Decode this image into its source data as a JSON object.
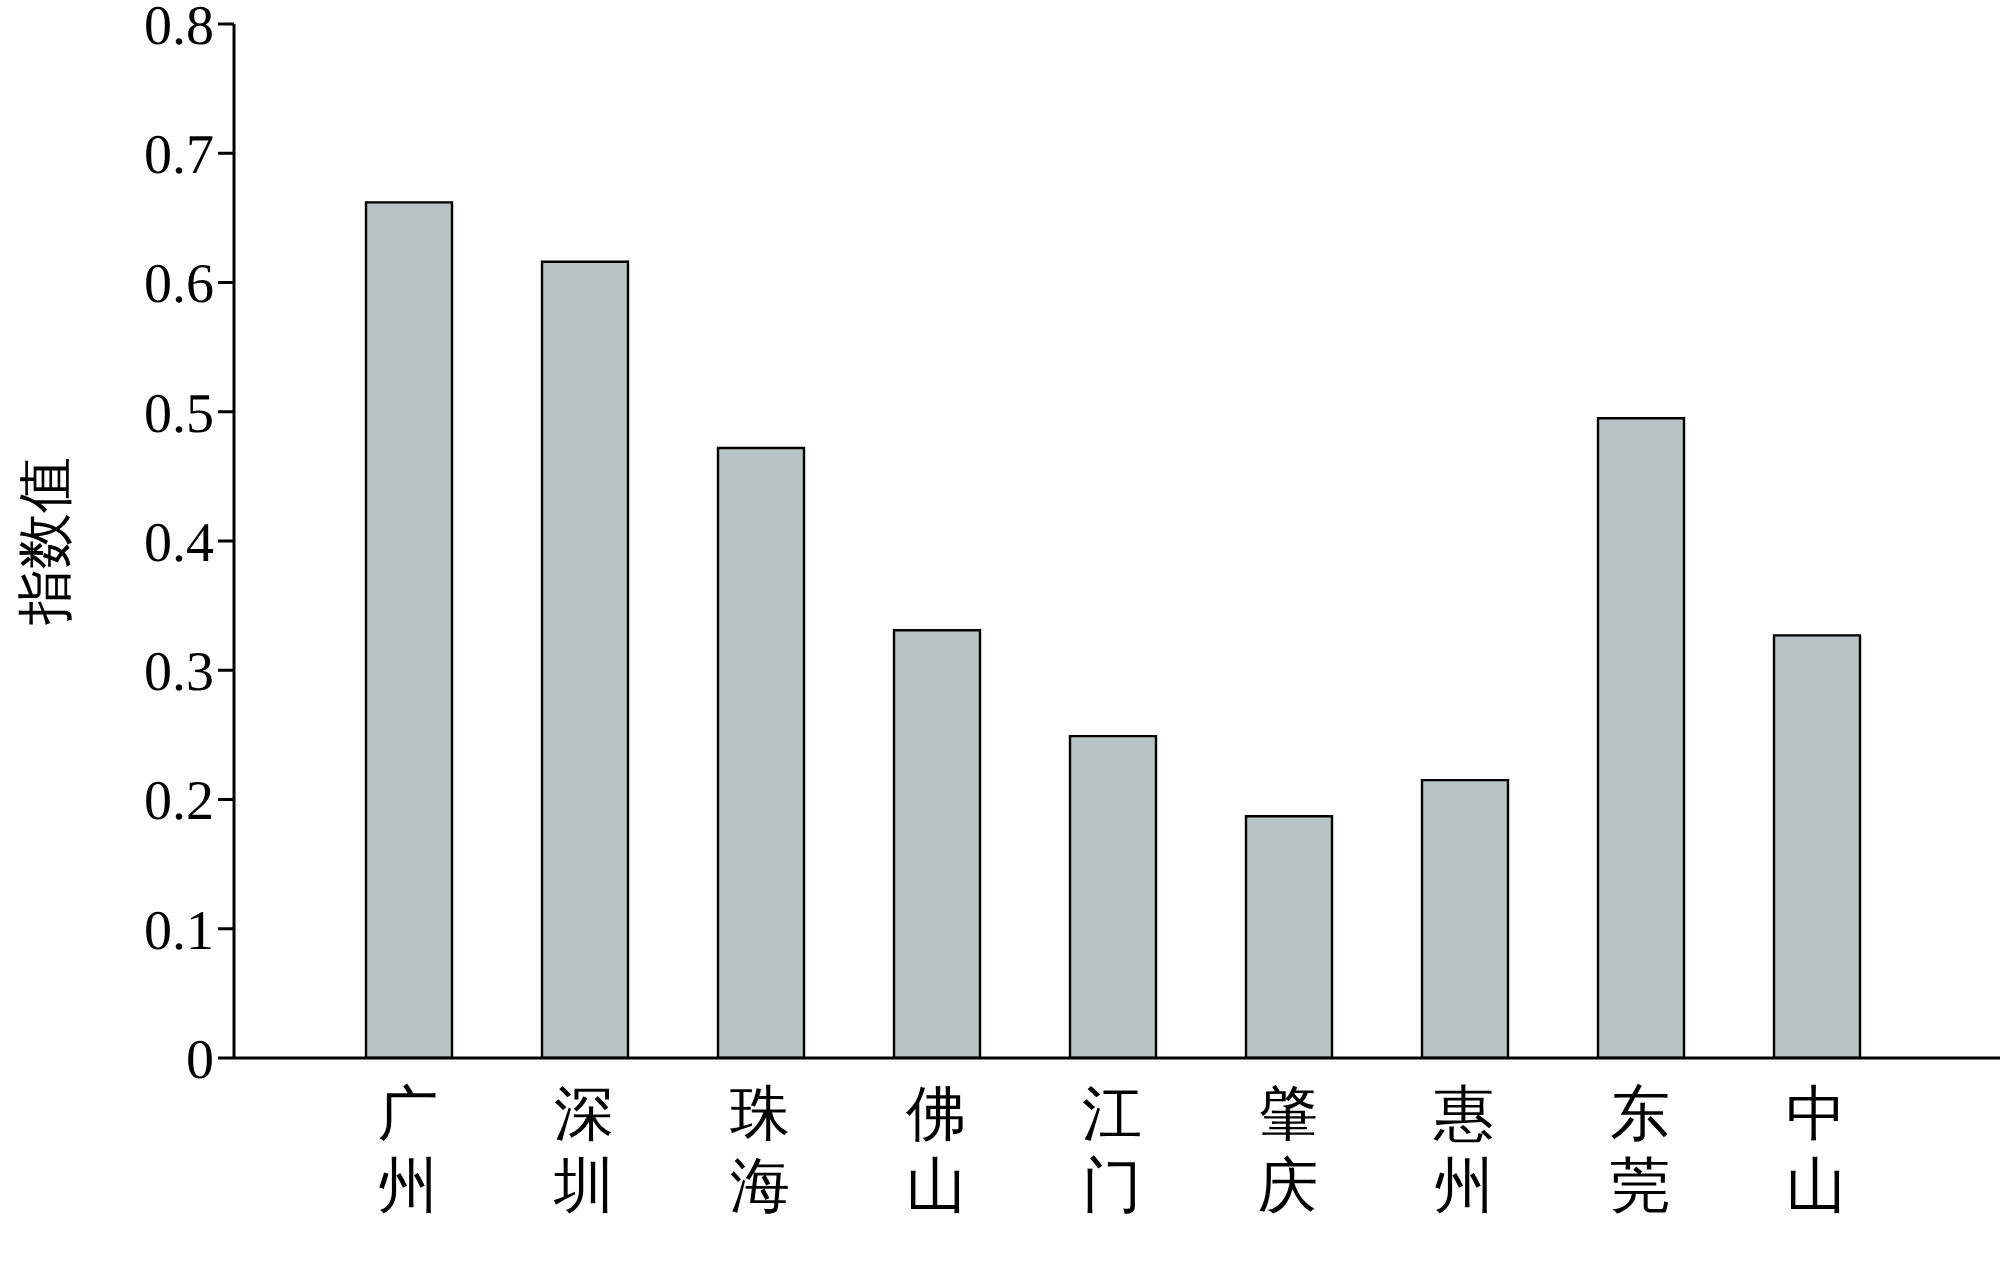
{
  "chart_data": {
    "type": "bar",
    "ylabel": "指数值",
    "categories": [
      "广州",
      "深圳",
      "珠海",
      "佛山",
      "江门",
      "肇庆",
      "惠州",
      "东莞",
      "中山"
    ],
    "values": [
      0.662,
      0.616,
      0.472,
      0.331,
      0.249,
      0.187,
      0.215,
      0.495,
      0.327
    ],
    "color": "#b9c4c6",
    "ylim": [
      0,
      0.8
    ],
    "yticks": [
      0,
      0.1,
      0.2,
      0.3,
      0.4,
      0.5,
      0.6,
      0.7,
      0.8
    ]
  }
}
